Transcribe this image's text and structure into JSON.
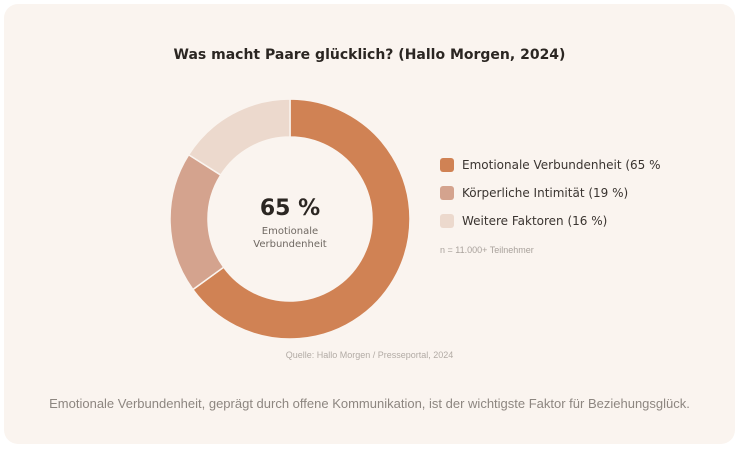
{
  "chart_data": {
    "type": "pie",
    "title": "Was macht Paare glücklich? (Hallo Morgen, 2024)",
    "categories": [
      "Emotionale Verbundenheit",
      "Körperliche Intimität",
      "Weitere Faktoren"
    ],
    "values": [
      65,
      19,
      16
    ],
    "colors": [
      "#d08254",
      "#d4a38e",
      "#ecd9cd"
    ],
    "legend_labels": [
      "Emotionale Verbundenheit (65 %",
      "Körperliche Intimität (19 %)",
      "Weitere Faktoren (16 %)"
    ],
    "legend_position": "right",
    "center_value": "65 %",
    "center_label_line1": "Emotionale",
    "center_label_line2": "Verbundenheit",
    "note": "n = 11.000+ Teilnehmer",
    "source": "Quelle: Hallo Morgen / Presseportal, 2024"
  },
  "caption": "Emotionale Verbundenheit, geprägt durch offene Kommunikation, ist der wichtigste Faktor für Beziehungsglück."
}
